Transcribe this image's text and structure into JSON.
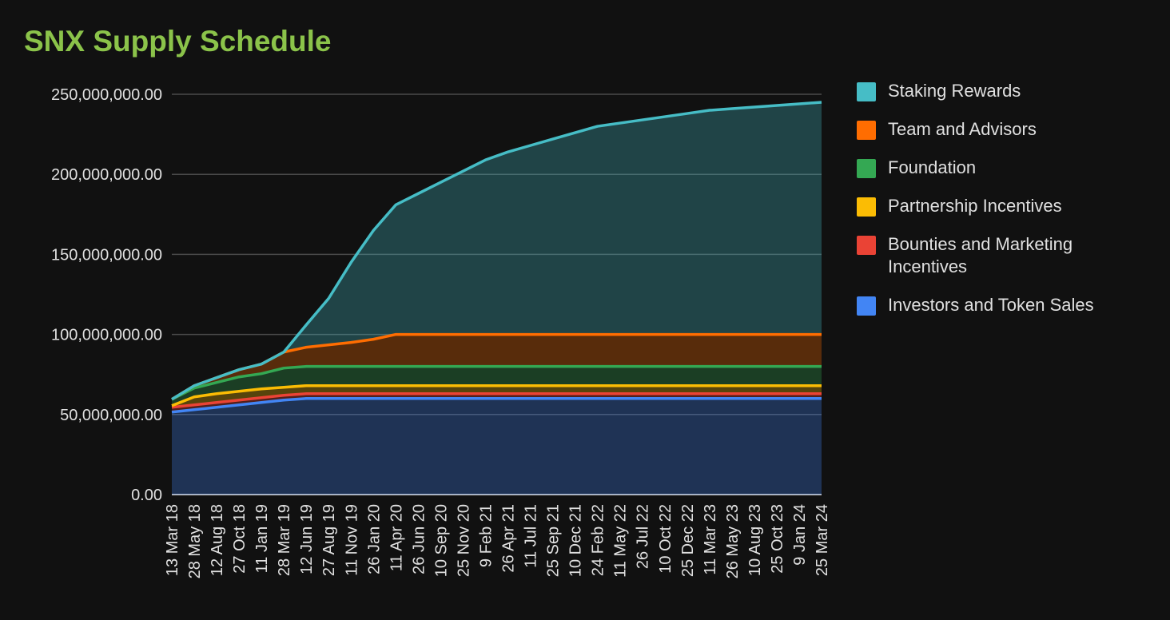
{
  "chart_data": {
    "type": "area",
    "stacked": true,
    "title": "SNX Supply Schedule",
    "xlabel": "",
    "ylabel": "",
    "ylim": [
      0,
      250000000
    ],
    "y_ticks": [
      "0.00",
      "50,000,000.00",
      "100,000,000.00",
      "150,000,000.00",
      "200,000,000.00",
      "250,000,000.00"
    ],
    "x_ticks": [
      "13 Mar 18",
      "28 May 18",
      "12 Aug 18",
      "27 Oct 18",
      "11 Jan 19",
      "28 Mar 19",
      "12 Jun 19",
      "27 Aug 19",
      "11 Nov 19",
      "26 Jan 20",
      "11 Apr 20",
      "26 Jun 20",
      "10 Sep 20",
      "25 Nov 20",
      "9 Feb 21",
      "26 Apr 21",
      "11 Jul 21",
      "25 Sep 21",
      "10 Dec 21",
      "24 Feb 22",
      "11 May 22",
      "26 Jul 22",
      "10 Oct 22",
      "25 Dec 22",
      "11 Mar 23",
      "26 May 23",
      "10 Aug 23",
      "25 Oct 23",
      "9 Jan 24",
      "25 Mar 24"
    ],
    "grid": true,
    "legend_position": "right",
    "x": [
      "13 Mar 18",
      "28 May 18",
      "12 Aug 18",
      "27 Oct 18",
      "11 Jan 19",
      "28 Mar 19",
      "12 Jun 19",
      "27 Aug 19",
      "11 Nov 19",
      "26 Jan 20",
      "11 Apr 20",
      "26 Jun 20",
      "10 Sep 20",
      "25 Nov 20",
      "9 Feb 21",
      "26 Apr 21",
      "11 Jul 21",
      "25 Sep 21",
      "10 Dec 21",
      "24 Feb 22",
      "11 May 22",
      "26 Jul 22",
      "10 Oct 22",
      "25 Dec 22",
      "11 Mar 23",
      "26 May 23",
      "10 Aug 23",
      "25 Oct 23",
      "9 Jan 24",
      "25 Mar 24"
    ],
    "series": [
      {
        "name": "Investors and Token Sales",
        "color": "#4285f4",
        "values": [
          51500000,
          53000000,
          54500000,
          56000000,
          57500000,
          59000000,
          60000000,
          60000000,
          60000000,
          60000000,
          60000000,
          60000000,
          60000000,
          60000000,
          60000000,
          60000000,
          60000000,
          60000000,
          60000000,
          60000000,
          60000000,
          60000000,
          60000000,
          60000000,
          60000000,
          60000000,
          60000000,
          60000000,
          60000000,
          60000000
        ]
      },
      {
        "name": "Bounties and Marketing Incentives",
        "color": "#ea4335",
        "values": [
          3000000,
          3000000,
          3000000,
          3000000,
          3000000,
          3000000,
          3000000,
          3000000,
          3000000,
          3000000,
          3000000,
          3000000,
          3000000,
          3000000,
          3000000,
          3000000,
          3000000,
          3000000,
          3000000,
          3000000,
          3000000,
          3000000,
          3000000,
          3000000,
          3000000,
          3000000,
          3000000,
          3000000,
          3000000,
          3000000
        ]
      },
      {
        "name": "Partnership Incentives",
        "color": "#fbbc04",
        "values": [
          1000000,
          5000000,
          5500000,
          5500000,
          5500000,
          5000000,
          5000000,
          5000000,
          5000000,
          5000000,
          5000000,
          5000000,
          5000000,
          5000000,
          5000000,
          5000000,
          5000000,
          5000000,
          5000000,
          5000000,
          5000000,
          5000000,
          5000000,
          5000000,
          5000000,
          5000000,
          5000000,
          5000000,
          5000000,
          5000000
        ]
      },
      {
        "name": "Foundation",
        "color": "#34a853",
        "values": [
          4000000,
          5500000,
          7000000,
          9000000,
          9500000,
          12000000,
          12000000,
          12000000,
          12000000,
          12000000,
          12000000,
          12000000,
          12000000,
          12000000,
          12000000,
          12000000,
          12000000,
          12000000,
          12000000,
          12000000,
          12000000,
          12000000,
          12000000,
          12000000,
          12000000,
          12000000,
          12000000,
          12000000,
          12000000,
          12000000
        ]
      },
      {
        "name": "Team and Advisors",
        "color": "#ff6d01",
        "values": [
          0,
          1500000,
          3000000,
          4500000,
          6000000,
          10000000,
          12000000,
          13500000,
          15000000,
          17000000,
          20000000,
          20000000,
          20000000,
          20000000,
          20000000,
          20000000,
          20000000,
          20000000,
          20000000,
          20000000,
          20000000,
          20000000,
          20000000,
          20000000,
          20000000,
          20000000,
          20000000,
          20000000,
          20000000,
          20000000
        ]
      },
      {
        "name": "Staking Rewards",
        "color": "#46bdc6",
        "values": [
          0,
          0,
          0,
          0,
          0,
          0,
          14000000,
          29000000,
          50000000,
          68000000,
          81000000,
          88000000,
          95000000,
          102000000,
          109000000,
          114000000,
          118000000,
          122000000,
          126000000,
          130000000,
          132000000,
          134000000,
          136000000,
          138000000,
          140000000,
          141000000,
          142000000,
          143000000,
          144000000,
          145000000
        ]
      }
    ]
  }
}
